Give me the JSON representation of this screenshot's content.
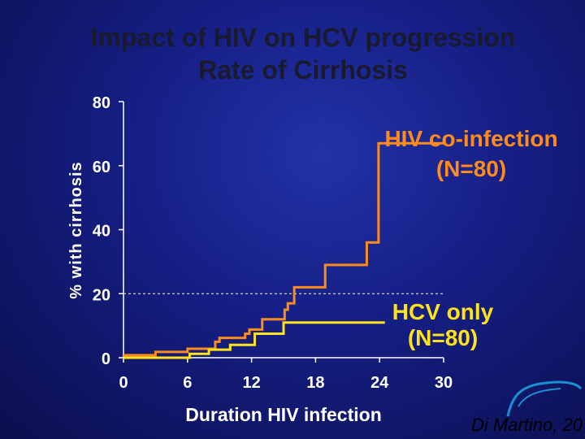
{
  "chart_data": {
    "type": "line",
    "step": true,
    "title": "Impact of HIV on HCV progression",
    "subtitle": "Rate of Cirrhosis",
    "xlabel": "Duration HIV infection",
    "ylabel": "% with cirrhosis",
    "xlim": [
      0,
      30
    ],
    "ylim": [
      0,
      80
    ],
    "xticks": [
      0,
      6,
      12,
      18,
      24,
      30
    ],
    "yticks": [
      0,
      20,
      40,
      60,
      80
    ],
    "reference_line_y": 20,
    "series": [
      {
        "name": "HIV co-infection",
        "label_lines": [
          "HIV co-infection",
          "(N=80)"
        ],
        "color": "#ff8c1a",
        "x": [
          0,
          3,
          6,
          8,
          8.6,
          9,
          11,
          11.4,
          11.8,
          13,
          14.9,
          15.1,
          15.4,
          16,
          18.2,
          18.9,
          22.8,
          23.9,
          30
        ],
        "y": [
          0.8,
          1.8,
          2.8,
          2.8,
          5,
          6.2,
          6.2,
          7.5,
          8.8,
          12,
          12,
          15,
          17,
          22,
          22,
          29,
          36,
          67,
          67
        ]
      },
      {
        "name": "HCV only",
        "label_lines": [
          "HCV only",
          "(N=80)"
        ],
        "color": "#ffe31a",
        "x": [
          0,
          6.2,
          8,
          10,
          12.3,
          15,
          24.5
        ],
        "y": [
          0,
          1.2,
          2.5,
          4,
          7.5,
          11,
          11
        ]
      }
    ]
  },
  "citation": "Di Martino, 20"
}
